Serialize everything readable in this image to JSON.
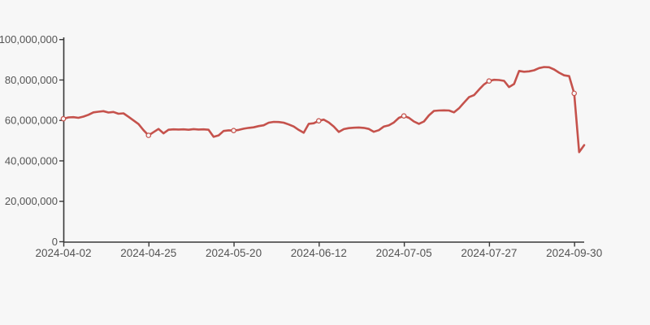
{
  "page": {
    "background_color": "#f7f7f7"
  },
  "chart_data": {
    "type": "line",
    "title": "",
    "xlabel": "",
    "ylabel": "",
    "legend": "none",
    "grid": false,
    "x_tick_labels": [
      "2024-04-02",
      "2024-04-25",
      "2024-05-20",
      "2024-06-12",
      "2024-07-05",
      "2024-07-27",
      "2024-09-30"
    ],
    "x_tick_indices": [
      0,
      17,
      34,
      51,
      68,
      85,
      102
    ],
    "y_tick_labels": [
      "0",
      "20,000,000",
      "40,000,000",
      "60,000,000",
      "80,000,000",
      "100,000,000"
    ],
    "y_ticks": [
      0,
      20000000,
      40000000,
      60000000,
      80000000,
      100000000
    ],
    "ylim": [
      0,
      100000000
    ],
    "values_unit_multiplier": 1000000,
    "values_millions": [
      60.8,
      61.5,
      61.6,
      61.3,
      61.9,
      62.8,
      64.0,
      64.3,
      64.6,
      63.9,
      64.2,
      63.3,
      63.5,
      61.8,
      60.0,
      58.2,
      55.2,
      52.6,
      54.2,
      55.8,
      53.6,
      55.4,
      55.6,
      55.5,
      55.6,
      55.4,
      55.7,
      55.5,
      55.6,
      55.4,
      51.9,
      52.6,
      54.8,
      55.1,
      55.0,
      55.3,
      55.9,
      56.3,
      56.6,
      57.2,
      57.6,
      58.9,
      59.3,
      59.2,
      58.9,
      58.0,
      57.0,
      55.3,
      53.9,
      58.3,
      58.6,
      59.8,
      60.4,
      59.0,
      57.0,
      54.3,
      55.7,
      56.2,
      56.4,
      56.5,
      56.3,
      55.8,
      54.4,
      55.2,
      57.0,
      57.6,
      59.0,
      61.3,
      62.2,
      61.3,
      59.5,
      58.3,
      59.5,
      62.5,
      64.7,
      64.9,
      65.0,
      64.9,
      64.0,
      66.0,
      68.8,
      71.5,
      72.5,
      75.3,
      77.8,
      79.5,
      80.1,
      80.0,
      79.6,
      76.5,
      78.0,
      84.5,
      84.1,
      84.3,
      84.8,
      85.9,
      86.4,
      86.3,
      85.2,
      83.6,
      82.3,
      81.9,
      73.4,
      44.3,
      47.8
    ],
    "marker_point_indices": [
      0,
      17,
      34,
      51,
      68,
      85,
      102
    ],
    "line_color": "#c5524c",
    "marker_fill_color": "#f7f7f7",
    "axis_color": "#383838",
    "label_color": "#545454"
  }
}
